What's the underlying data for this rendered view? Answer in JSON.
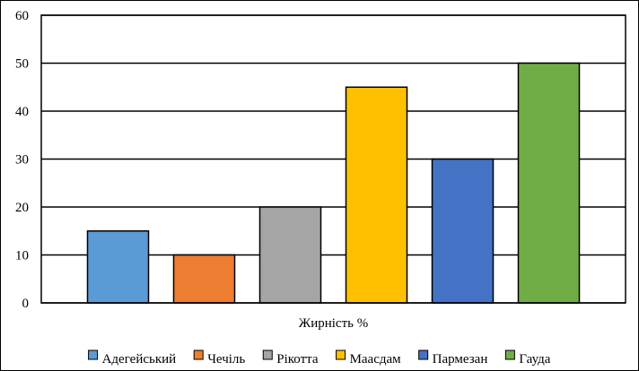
{
  "chart_data": {
    "type": "bar",
    "xlabel": "Жирність %",
    "ylabel": "",
    "title": "",
    "ylim": [
      0,
      60
    ],
    "yticks": [
      0,
      10,
      20,
      30,
      40,
      50,
      60
    ],
    "grid": true,
    "legend_position": "bottom",
    "series": [
      {
        "name": "Адегейський",
        "value": 15,
        "color": "#5b9bd5"
      },
      {
        "name": "Чечіль",
        "value": 10,
        "color": "#ed7d31"
      },
      {
        "name": "Рікотта",
        "value": 20,
        "color": "#a5a5a5"
      },
      {
        "name": "Маасдам",
        "value": 45,
        "color": "#ffc000"
      },
      {
        "name": "Пармезан",
        "value": 30,
        "color": "#4472c4"
      },
      {
        "name": "Гауда",
        "value": 50,
        "color": "#70ad47"
      }
    ]
  }
}
